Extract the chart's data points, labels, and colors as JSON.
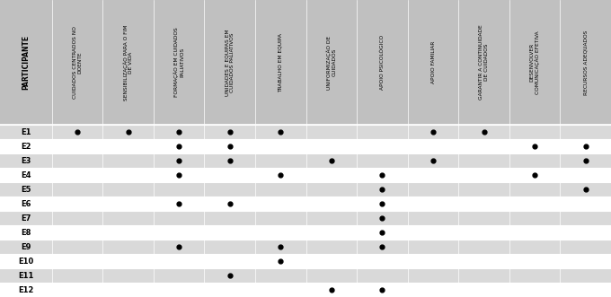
{
  "columns": [
    "PARTICIPANTE",
    "CUIDADOS CENTRADOS NO\nDOENTE",
    "SENSIBILIZAÇÃO PARA O FIM\nDE VIDA",
    "FORMAÇÃO EM CUIDADOS\nPALIATIVOS",
    "UNIDADES E EQUIPAS EM\nCUIDADOS PALIATIVOS",
    "TRABALHO EM EQUIPA",
    "UNIFORMIZAÇÃO DE\nCUIDADOS",
    "APOIO PSICOLÓGICO",
    "APOIO FAMILIAR",
    "GARANTIR A CONTINUIDADE\nDE CUIDADOS",
    "DESENVOLVER\nCOMUNICAÇÃO EFETIVA",
    "RECURSOS ADEQUADOS"
  ],
  "rows": [
    "E1",
    "E2",
    "E3",
    "E4",
    "E5",
    "E6",
    "E7",
    "E8",
    "E9",
    "E10",
    "E11",
    "E12"
  ],
  "dots": [
    [
      1,
      1,
      1,
      1,
      1,
      0,
      0,
      1,
      1,
      0,
      0
    ],
    [
      0,
      0,
      1,
      1,
      0,
      0,
      0,
      0,
      0,
      1,
      1
    ],
    [
      0,
      0,
      1,
      1,
      0,
      1,
      0,
      1,
      0,
      0,
      1
    ],
    [
      0,
      0,
      1,
      0,
      1,
      0,
      1,
      0,
      0,
      1,
      0
    ],
    [
      0,
      0,
      0,
      0,
      0,
      0,
      1,
      0,
      0,
      0,
      1
    ],
    [
      0,
      0,
      1,
      1,
      0,
      0,
      1,
      0,
      0,
      0,
      0
    ],
    [
      0,
      0,
      0,
      0,
      0,
      0,
      1,
      0,
      0,
      0,
      0
    ],
    [
      0,
      0,
      0,
      0,
      0,
      0,
      1,
      0,
      0,
      0,
      0
    ],
    [
      0,
      0,
      1,
      0,
      1,
      0,
      1,
      0,
      0,
      0,
      0
    ],
    [
      0,
      0,
      0,
      0,
      1,
      0,
      0,
      0,
      0,
      0,
      0
    ],
    [
      0,
      0,
      0,
      1,
      0,
      0,
      0,
      0,
      0,
      0,
      0
    ],
    [
      0,
      0,
      0,
      0,
      0,
      1,
      1,
      0,
      0,
      0,
      0
    ]
  ],
  "header_bg": "#c0c0c0",
  "row_bg_even": "#d9d9d9",
  "row_bg_odd": "#ffffff",
  "dot_color": "#000000",
  "text_color": "#000000",
  "header_text_color": "#000000"
}
